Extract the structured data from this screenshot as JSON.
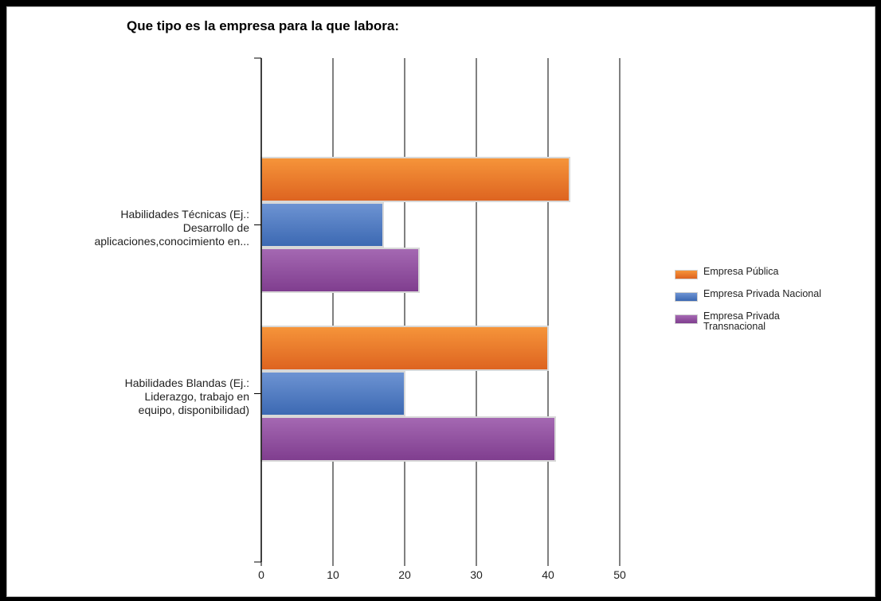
{
  "chart_data": {
    "type": "bar",
    "orientation": "horizontal",
    "title": "Que tipo es la empresa para la que labora:",
    "categories": [
      "Habilidades Técnicas (Ej.: Desarrollo de aplicaciones,conocimiento en…",
      "Habilidades Blandas (Ej.: Liderazgo, trabajo en equipo, disponibilidad)"
    ],
    "category_lines": [
      [
        "Habilidades Técnicas (Ej.:",
        "Desarrollo de",
        "aplicaciones,conocimiento en..."
      ],
      [
        "Habilidades Blandas (Ej.:",
        "Liderazgo, trabajo en",
        "equipo, disponibilidad)"
      ]
    ],
    "series": [
      {
        "name": "Empresa Pública",
        "values": [
          43,
          40
        ],
        "color": "#e8741f"
      },
      {
        "name": "Empresa Privada Nacional",
        "values": [
          17,
          20
        ],
        "color": "#4a78c0"
      },
      {
        "name": "Empresa Privada Transnacional",
        "values": [
          22,
          41
        ],
        "color": "#8c4a9a"
      }
    ],
    "legend_lines": [
      "Empresa Pública",
      "Empresa Privada Nacional",
      "Empresa Privada\nTransnacional"
    ],
    "xlim": [
      0,
      50
    ],
    "xticks": [
      0,
      10,
      20,
      30,
      40,
      50
    ],
    "grid": true,
    "legend_position": "right"
  }
}
